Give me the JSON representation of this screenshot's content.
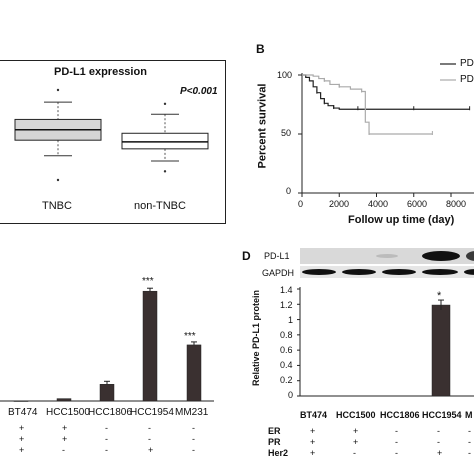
{
  "panelA": {
    "title": "PD-L1 expression",
    "pvalue": "P<0.001",
    "groups": [
      {
        "label": "TNBC",
        "whisker_low": 2.2,
        "q1": 3.1,
        "median": 3.7,
        "q3": 4.3,
        "whisker_high": 5.3,
        "outlier_high": 6.0,
        "outlier_low": 0.8
      },
      {
        "label": "non-TNBC",
        "whisker_low": 1.9,
        "q1": 2.6,
        "median": 3.0,
        "q3": 3.5,
        "whisker_high": 4.6,
        "outlier_high": 5.2,
        "outlier_low": 1.3
      }
    ]
  },
  "panelB": {
    "letter": "B",
    "ylabel": "Percent survival",
    "xlabel": "Follow up time (day)",
    "yticks": [
      "0",
      "50",
      "100"
    ],
    "xticks": [
      "0",
      "2000",
      "4000",
      "6000",
      "8000"
    ],
    "legend": [
      "PD",
      "PD"
    ],
    "colors": {
      "dark": "#222222",
      "light": "#aaaaaa"
    },
    "series": [
      {
        "x": [
          0,
          200,
          400,
          600,
          800,
          1000,
          1200,
          1400,
          1700,
          2000,
          3000,
          4000,
          6000,
          8000,
          9000
        ],
        "y": [
          100,
          98,
          95,
          90,
          85,
          80,
          76,
          74,
          72,
          71,
          71,
          71,
          71,
          71,
          71
        ]
      },
      {
        "x": [
          0,
          300,
          600,
          900,
          1200,
          1500,
          2000,
          2600,
          3200,
          3400,
          3600,
          5000,
          7000
        ],
        "y": [
          100,
          100,
          99,
          97,
          95,
          92,
          90,
          88,
          86,
          60,
          50,
          50,
          50
        ]
      }
    ]
  },
  "panelC": {
    "categories": [
      "BT474",
      "HCC1500",
      "HCC1806",
      "HCC1954",
      "MM231"
    ],
    "values": [
      0.0,
      0.02,
      0.14,
      0.92,
      0.47
    ],
    "ymax": 1.0,
    "stars": [
      "",
      "",
      "",
      "***",
      "***"
    ],
    "marks": [
      [
        "+",
        "+",
        "-",
        "-",
        "-"
      ],
      [
        "+",
        "+",
        "-",
        "-",
        "-"
      ],
      [
        "+",
        "-",
        "-",
        "+",
        "-"
      ]
    ]
  },
  "panelD": {
    "letter": "D",
    "ylabel": "Relative PD-L1 protein",
    "blot_labels": [
      "PD-L1",
      "GAPDH"
    ],
    "yticks": [
      "0",
      "0.2",
      "0.4",
      "0.6",
      "0.8",
      "1",
      "1.2",
      "1.4"
    ],
    "ymax": 1.4,
    "categories": [
      "BT474",
      "HCC1500",
      "HCC1806",
      "HCC1954",
      "M"
    ],
    "values": [
      0,
      0,
      0,
      1.19,
      0
    ],
    "stars": [
      "",
      "",
      "",
      "*",
      ""
    ],
    "row_labels": [
      "ER",
      "PR",
      "Her2"
    ],
    "marks": [
      [
        "+",
        "+",
        "-",
        "-",
        "-"
      ],
      [
        "+",
        "+",
        "-",
        "-",
        "-"
      ],
      [
        "+",
        "-",
        "-",
        "+",
        "-"
      ]
    ]
  }
}
